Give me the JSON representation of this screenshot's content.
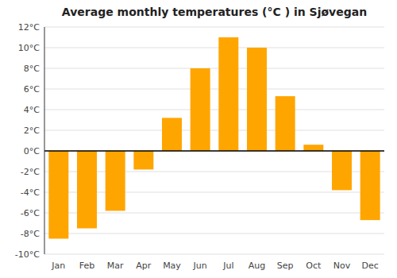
{
  "chart_data": {
    "type": "bar",
    "title": "Average monthly temperatures (°C ) in Sjøvegan",
    "categories": [
      "Jan",
      "Feb",
      "Mar",
      "Apr",
      "May",
      "Jun",
      "Jul",
      "Aug",
      "Sep",
      "Oct",
      "Nov",
      "Dec"
    ],
    "values": [
      -8.5,
      -7.5,
      -5.8,
      -1.8,
      3.2,
      8.0,
      11.0,
      10.0,
      5.3,
      0.6,
      -3.8,
      -6.7
    ],
    "color": "#FFA500",
    "ylim": [
      -10,
      12
    ],
    "yticks": [
      {
        "value": -10,
        "label": "-10°C"
      },
      {
        "value": -8,
        "label": "-8°C"
      },
      {
        "value": -6,
        "label": "-6°C"
      },
      {
        "value": -4,
        "label": "-4°C"
      },
      {
        "value": -2,
        "label": "-2°C"
      },
      {
        "value": 0,
        "label": "0°C"
      },
      {
        "value": 2,
        "label": "2°C"
      },
      {
        "value": 4,
        "label": "4°C"
      },
      {
        "value": 6,
        "label": "6°C"
      },
      {
        "value": 8,
        "label": "8°C"
      },
      {
        "value": 10,
        "label": "10°C"
      },
      {
        "value": 12,
        "label": "12°C"
      }
    ],
    "grid": true
  }
}
